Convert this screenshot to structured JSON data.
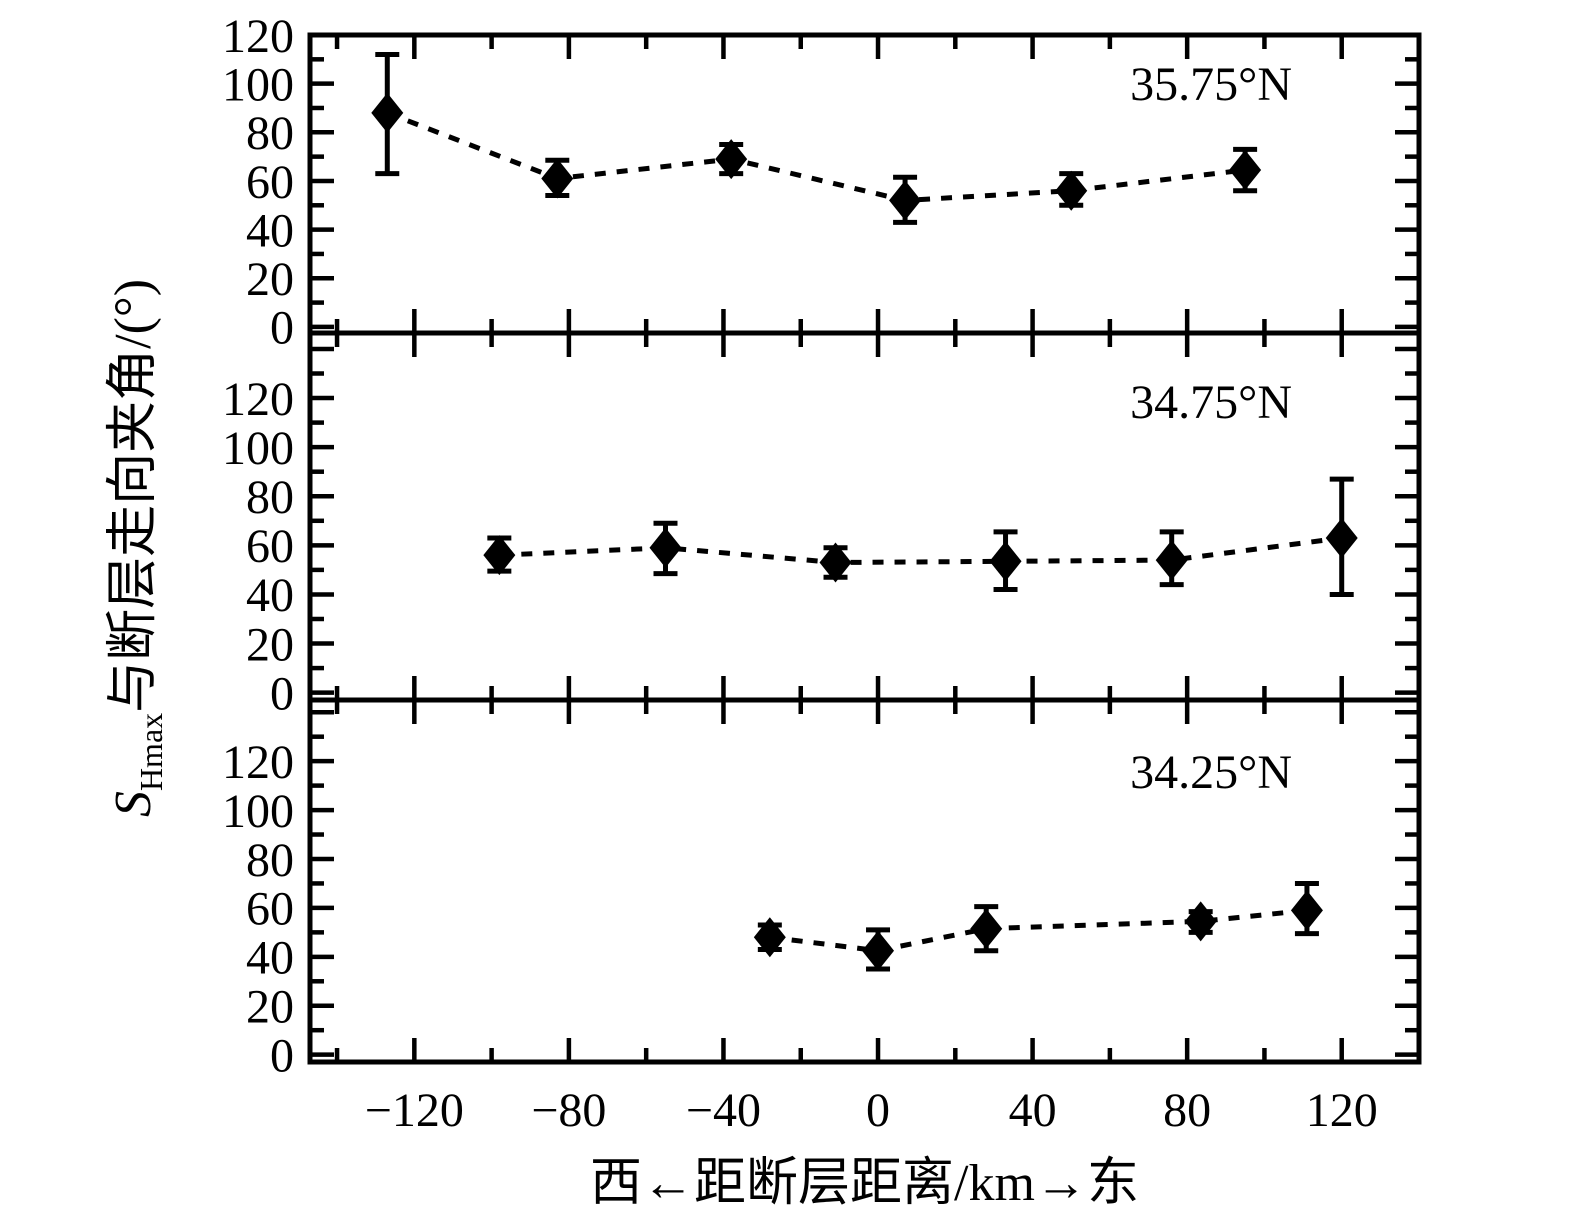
{
  "figure": {
    "colors": {
      "ink": "#000000",
      "background": "#ffffff"
    },
    "x_axis": {
      "title": "西←距断层距离/km→东",
      "major_tick_values": [
        -120,
        -80,
        -40,
        0,
        40,
        80,
        120
      ],
      "major_tick_labels": [
        "−120",
        "−80",
        "−40",
        "0",
        "40",
        "80",
        "120"
      ],
      "minor_step": 20,
      "xlim": [
        -147,
        140
      ]
    },
    "y_axis": {
      "title_symbol_italic": "S",
      "title_subscript": "Hmax",
      "title_rest": "与断层走向夹角/(°)",
      "major_tick_values": [
        0,
        20,
        40,
        60,
        80,
        100,
        120
      ],
      "major_tick_labels": [
        "0",
        "20",
        "40",
        "60",
        "80",
        "100",
        "120"
      ],
      "minor_step": 10
    }
  },
  "chart_data": [
    {
      "type": "line",
      "panel_label": "35.75°N",
      "marker": "filled-diamond",
      "line_style": "dashed",
      "ylim": [
        -2.5,
        120
      ],
      "x": [
        -127,
        -83,
        -38,
        7,
        50,
        95
      ],
      "y": [
        88,
        61,
        69,
        52,
        56,
        64.5
      ],
      "err_lo": [
        63,
        54,
        63,
        43,
        50,
        56
      ],
      "err_hi": [
        112,
        68.5,
        75,
        61.5,
        63,
        73
      ]
    },
    {
      "type": "line",
      "panel_label": "34.75°N",
      "marker": "filled-diamond",
      "line_style": "dashed",
      "ylim": [
        -3,
        146.5
      ],
      "x": [
        -98,
        -55,
        -11,
        33,
        76,
        120
      ],
      "y": [
        56,
        59,
        53,
        53.5,
        54,
        63
      ],
      "err_lo": [
        49.5,
        48.5,
        47,
        42,
        44,
        40
      ],
      "err_hi": [
        63,
        69,
        59,
        65.5,
        65.5,
        87
      ]
    },
    {
      "type": "line",
      "panel_label": "34.25°N",
      "marker": "filled-diamond",
      "line_style": "dashed",
      "ylim": [
        -3,
        145
      ],
      "x": [
        -28,
        0,
        28,
        83.5,
        111
      ],
      "y": [
        48,
        42.5,
        51.5,
        54.5,
        59
      ],
      "err_lo": [
        43,
        35,
        42.5,
        50,
        49.5
      ],
      "err_hi": [
        53,
        51,
        60.5,
        58.5,
        70
      ]
    }
  ]
}
